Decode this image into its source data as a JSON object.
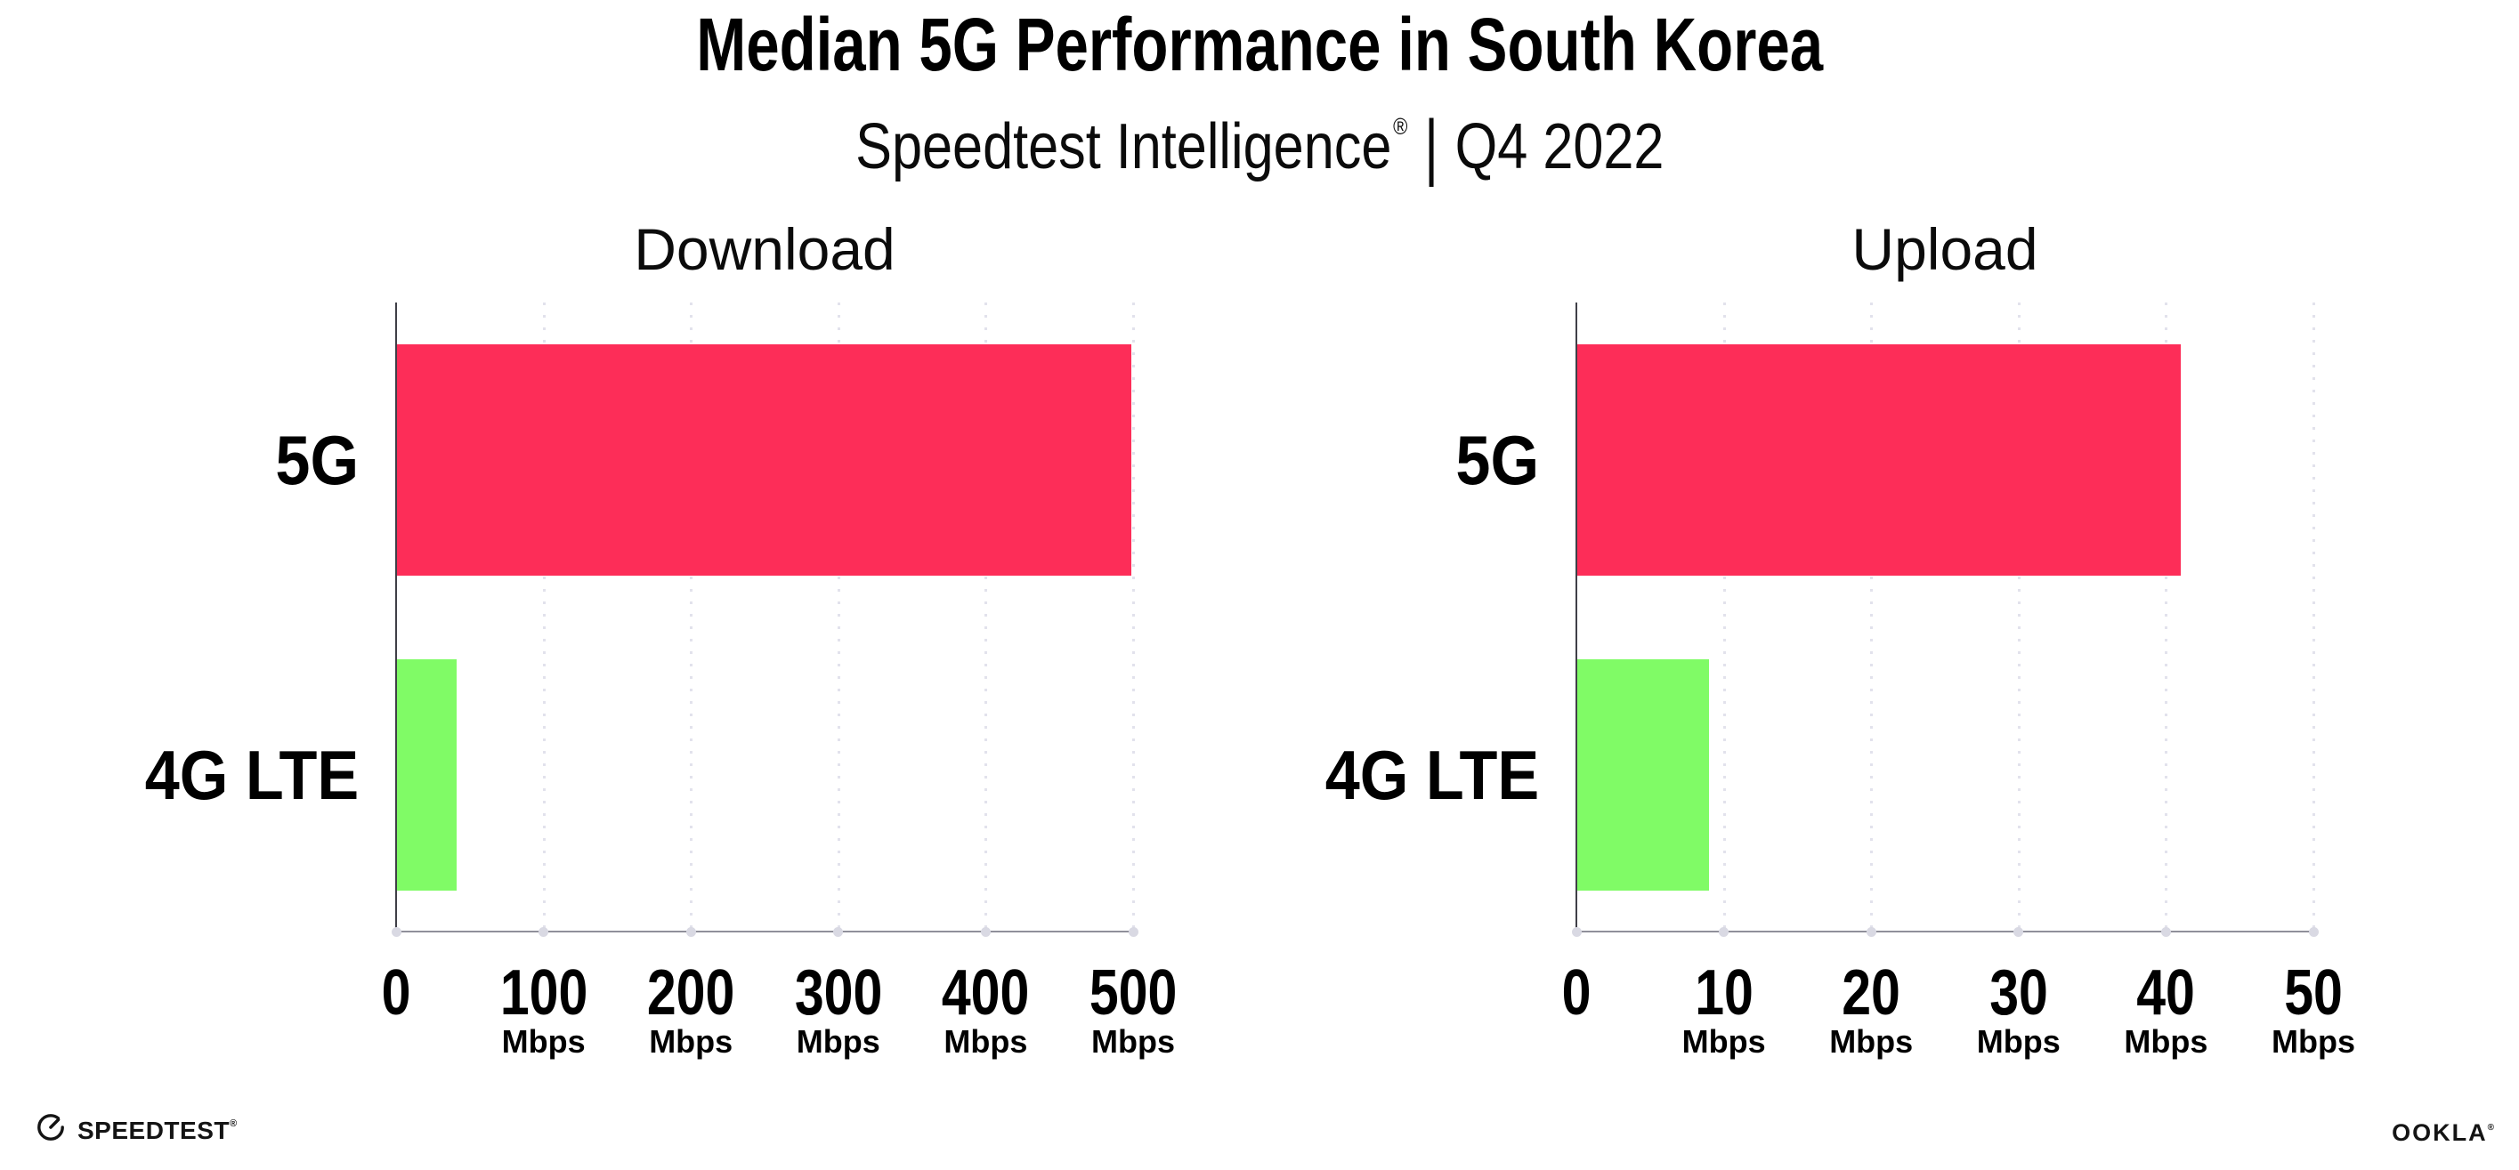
{
  "title": "Median 5G Performance in South Korea",
  "subtitle": {
    "brand": "Speedtest Intelligence",
    "reg": "®",
    "separator": "|",
    "period": "Q4 2022"
  },
  "colors": {
    "bar_5g": "#FD2D58",
    "bar_4g_lte": "#80FB66",
    "gridline": "#E2E2EC",
    "axis_y": "#3F3F47",
    "axis_x": "#90909A",
    "tick_dot": "#D9D9E3",
    "text": "#000000"
  },
  "chart_data": [
    {
      "type": "bar",
      "orientation": "horizontal",
      "title": "Download",
      "categories": [
        "5G",
        "4G LTE"
      ],
      "values": [
        499,
        41
      ],
      "unit": "Mbps",
      "xlim": [
        0,
        500
      ],
      "xticks": [
        0,
        100,
        200,
        300,
        400,
        500
      ],
      "tick_unit": "Mbps",
      "bar_colors": [
        "#FD2D58",
        "#80FB66"
      ],
      "grid": "vertical-dotted",
      "legend": "none"
    },
    {
      "type": "bar",
      "orientation": "horizontal",
      "title": "Upload",
      "categories": [
        "5G",
        "4G LTE"
      ],
      "values": [
        41,
        9
      ],
      "unit": "Mbps",
      "xlim": [
        0,
        50
      ],
      "xticks": [
        0,
        10,
        20,
        30,
        40,
        50
      ],
      "tick_unit": "Mbps",
      "bar_colors": [
        "#FD2D58",
        "#80FB66"
      ],
      "grid": "vertical-dotted",
      "legend": "none"
    }
  ],
  "footer": {
    "speedtest": {
      "wordmark": "SPEEDTEST",
      "reg": "®",
      "icon": "speedtest-gauge-icon"
    },
    "ookla": {
      "wordmark": "OOKLA",
      "reg": "®"
    }
  }
}
